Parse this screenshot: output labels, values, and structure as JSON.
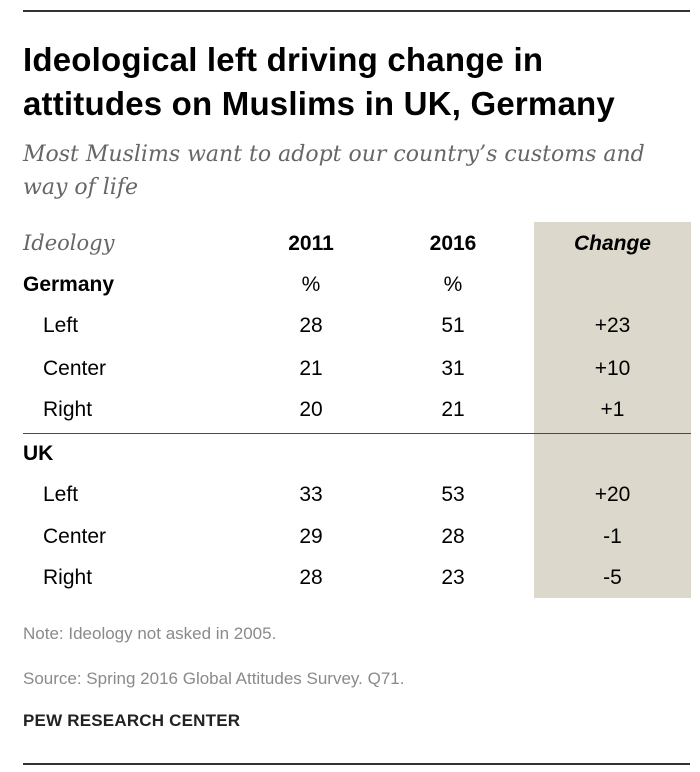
{
  "title_lines": [
    "Ideological left driving change in",
    "attitudes on Muslims in UK, Germany"
  ],
  "subtitle_lines": [
    "Most Muslims want to adopt our country’s customs and",
    "way of life"
  ],
  "colors": {
    "change_column": "#dcd8cb",
    "note_text": "#8a8a8a",
    "subtitle_text": "#666666"
  },
  "chart_data": {
    "type": "table",
    "title": "Ideological left driving change in attitudes on Muslims in UK, Germany",
    "subtitle": "Most Muslims want to adopt our country’s customs and way of life",
    "columns": {
      "ideology": "Ideology",
      "y2011": "2011",
      "y2016": "2016",
      "change": "Change"
    },
    "groups": [
      {
        "name": "Germany",
        "unit_2011": "%",
        "unit_2016": "%",
        "rows": [
          {
            "label": "Left",
            "v2011": "28",
            "v2016": "51",
            "change": "+23"
          },
          {
            "label": "Center",
            "v2011": "21",
            "v2016": "31",
            "change": "+10"
          },
          {
            "label": "Right",
            "v2011": "20",
            "v2016": "21",
            "change": "+1"
          }
        ]
      },
      {
        "name": "UK",
        "rows": [
          {
            "label": "Left",
            "v2011": "33",
            "v2016": "53",
            "change": "+20"
          },
          {
            "label": "Center",
            "v2011": "29",
            "v2016": "28",
            "change": "-1"
          },
          {
            "label": "Right",
            "v2011": "28",
            "v2016": "23",
            "change": "-5"
          }
        ]
      }
    ]
  },
  "note": "Note: Ideology not asked in 2005.",
  "source": "Source: Spring 2016 Global Attitudes Survey. Q71.",
  "credit": "PEW RESEARCH CENTER"
}
